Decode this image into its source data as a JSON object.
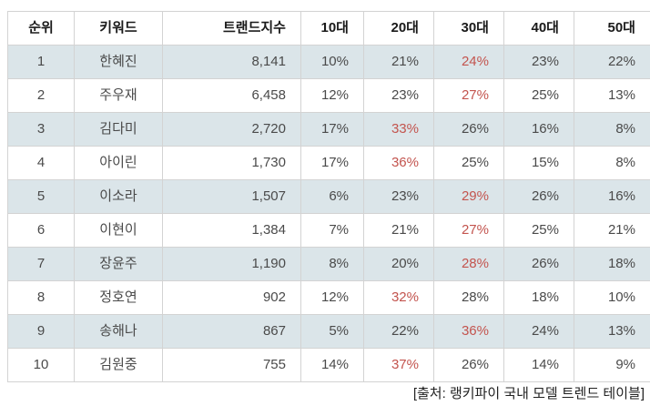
{
  "chart_data": {
    "type": "table",
    "title": "랭키파이 국내 모델 트렌드 테이블",
    "columns": [
      "순위",
      "키워드",
      "트랜드지수",
      "10대",
      "20대",
      "30대",
      "40대",
      "50대"
    ],
    "rows": [
      {
        "rank": "1",
        "keyword": "한혜진",
        "trend_index": "8,141",
        "ages": [
          "10%",
          "21%",
          "24%",
          "23%",
          "22%"
        ],
        "hot": 2
      },
      {
        "rank": "2",
        "keyword": "주우재",
        "trend_index": "6,458",
        "ages": [
          "12%",
          "23%",
          "27%",
          "25%",
          "13%"
        ],
        "hot": 2
      },
      {
        "rank": "3",
        "keyword": "김다미",
        "trend_index": "2,720",
        "ages": [
          "17%",
          "33%",
          "26%",
          "16%",
          "8%"
        ],
        "hot": 1
      },
      {
        "rank": "4",
        "keyword": "아이린",
        "trend_index": "1,730",
        "ages": [
          "17%",
          "36%",
          "25%",
          "15%",
          "8%"
        ],
        "hot": 1
      },
      {
        "rank": "5",
        "keyword": "이소라",
        "trend_index": "1,507",
        "ages": [
          "6%",
          "23%",
          "29%",
          "26%",
          "16%"
        ],
        "hot": 2
      },
      {
        "rank": "6",
        "keyword": "이현이",
        "trend_index": "1,384",
        "ages": [
          "7%",
          "21%",
          "27%",
          "25%",
          "21%"
        ],
        "hot": 2
      },
      {
        "rank": "7",
        "keyword": "장윤주",
        "trend_index": "1,190",
        "ages": [
          "8%",
          "20%",
          "28%",
          "26%",
          "18%"
        ],
        "hot": 2
      },
      {
        "rank": "8",
        "keyword": "정호연",
        "trend_index": "902",
        "ages": [
          "12%",
          "32%",
          "28%",
          "18%",
          "10%"
        ],
        "hot": 1
      },
      {
        "rank": "9",
        "keyword": "송해나",
        "trend_index": "867",
        "ages": [
          "5%",
          "22%",
          "36%",
          "24%",
          "13%"
        ],
        "hot": 2
      },
      {
        "rank": "10",
        "keyword": "김원중",
        "trend_index": "755",
        "ages": [
          "14%",
          "37%",
          "26%",
          "14%",
          "9%"
        ],
        "hot": 1
      }
    ]
  },
  "caption": "[출처: 랭키파이 국내 모델 트렌드 테이블]",
  "colors": {
    "highlight_text": "#c3544e",
    "row_shade": "#dbe5e9",
    "border": "#d3d3d3",
    "header_text": "#1a1a1a",
    "body_text": "#4a4a4a"
  }
}
